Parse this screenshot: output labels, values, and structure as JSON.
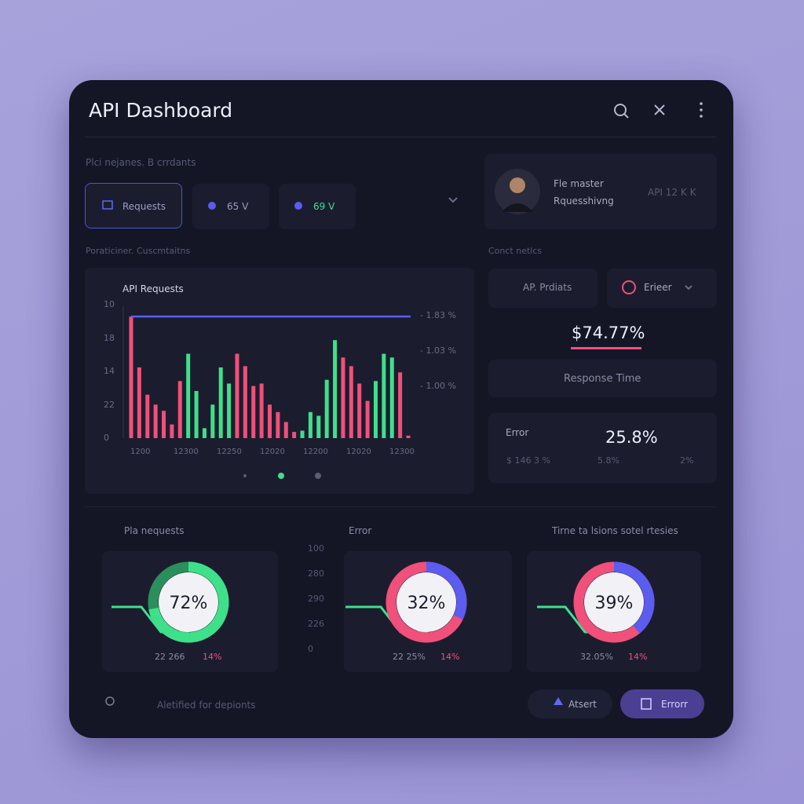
{
  "header": {
    "title": "API Dashboard"
  },
  "subtitle": "Plci nejanes. B crrdants",
  "tabs": [
    "Requests",
    "65 V",
    "69 V"
  ],
  "profile": {
    "name": "Fle master",
    "role": "Rquesshivng",
    "meta": "API 12 K K"
  },
  "section_labels": [
    "Poraticiner. Cuscmtaitns",
    "Conct netlcs"
  ],
  "chart_data": {
    "type": "bar",
    "title": "API Requests",
    "values": [
      98,
      57,
      35,
      27,
      22,
      11,
      46,
      68,
      38,
      8,
      27,
      57,
      44,
      68,
      58,
      42,
      44,
      27,
      21,
      13,
      5,
      6,
      21,
      18,
      47,
      79,
      65,
      58,
      44,
      30,
      46,
      68,
      65,
      53,
      2
    ],
    "colors": [
      "#f0507a",
      "#f0507a",
      "#f0507a",
      "#f0507a",
      "#f0507a",
      "#f0507a",
      "#f0507a",
      "#3ee08a",
      "#3ee08a",
      "#3ee08a",
      "#3ee08a",
      "#3ee08a",
      "#3ee08a",
      "#f0507a",
      "#f0507a",
      "#f0507a",
      "#f0507a",
      "#f0507a",
      "#f0507a",
      "#f0507a",
      "#f0507a",
      "#3ee08a",
      "#3ee08a",
      "#3ee08a",
      "#3ee08a",
      "#3ee08a",
      "#f0507a",
      "#f0507a",
      "#f0507a",
      "#f0507a",
      "#3ee08a",
      "#3ee08a",
      "#3ee08a",
      "#f0507a",
      "#f0507a"
    ],
    "ylim": [
      0,
      100
    ],
    "reference_line": {
      "value": 98,
      "color": "#5b5cf0"
    },
    "y_axis_labels": [
      "10",
      "18",
      "14",
      "22",
      "0"
    ],
    "x_axis_labels": [
      "1200",
      "12300",
      "12250",
      "12020",
      "12200",
      "12020",
      "12300"
    ],
    "right_labels": [
      "- 1.83 %",
      "- 1.03 %",
      "- 1.00 %"
    ]
  },
  "metrics": {
    "buttons": [
      "AP. Prdiats",
      "Erieer"
    ],
    "highlight": "$74.77%",
    "response_time": "Response Time",
    "error_title": "Error",
    "error_value": "25.8%",
    "error_details": [
      "$ 146 3 %",
      "5.8%",
      "2%"
    ]
  },
  "donut_axis_labels": [
    "100",
    "280",
    "290",
    "226",
    "0"
  ],
  "donuts": [
    {
      "title": "Pla nequests",
      "value": 72,
      "value_label": "72%",
      "colors": [
        "#3ee08a",
        "#2b8f5c"
      ],
      "footer": [
        "22 266",
        "14%"
      ]
    },
    {
      "title": "Error",
      "value": 32,
      "value_label": "32%",
      "colors": [
        "#5b5cf0",
        "#f0507a"
      ],
      "footer": [
        "22 25%",
        "14%"
      ]
    },
    {
      "title": "Tirne ta lsions sotel rtesies",
      "value": 39,
      "value_label": "39%",
      "colors": [
        "#5b5cf0",
        "#f0507a"
      ],
      "footer": [
        "32.05%",
        "14%"
      ]
    }
  ],
  "footer": {
    "note": "Aletified for depionts",
    "buttons": [
      "Atsert",
      "Errorr"
    ]
  }
}
